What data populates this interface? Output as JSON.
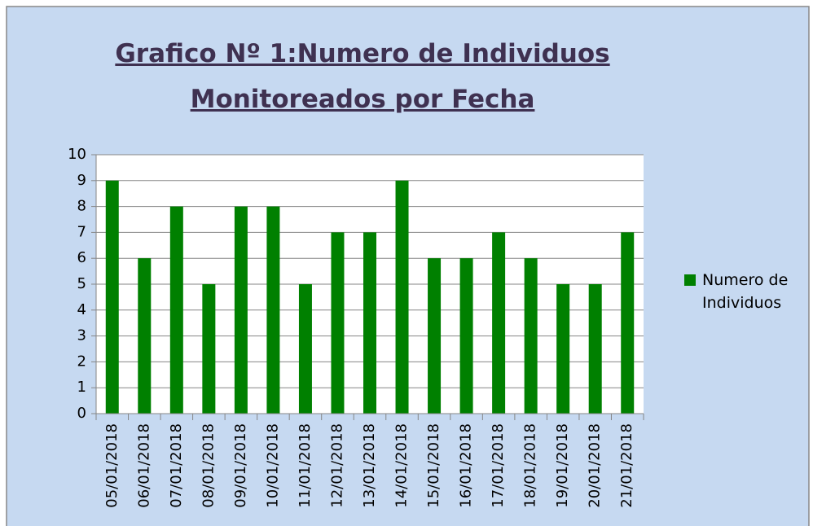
{
  "chart_data": {
    "type": "bar",
    "title": "Grafico Nº 1:Numero de Individuos Monitoreados por Fecha",
    "categories": [
      "05/01/2018",
      "06/01/2018",
      "07/01/2018",
      "08/01/2018",
      "09/01/2018",
      "10/01/2018",
      "11/01/2018",
      "12/01/2018",
      "13/01/2018",
      "14/01/2018",
      "15/01/2018",
      "16/01/2018",
      "17/01/2018",
      "18/01/2018",
      "19/01/2018",
      "20/01/2018",
      "21/01/2018"
    ],
    "series": [
      {
        "name": "Numero de Individuos",
        "color": "#008000",
        "values": [
          9,
          6,
          8,
          5,
          8,
          8,
          5,
          7,
          7,
          9,
          6,
          6,
          7,
          6,
          5,
          5,
          7
        ]
      }
    ],
    "ylim": [
      0,
      10
    ],
    "yticks": [
      0,
      1,
      2,
      3,
      4,
      5,
      6,
      7,
      8,
      9,
      10
    ],
    "grid": true,
    "legend": "right"
  }
}
